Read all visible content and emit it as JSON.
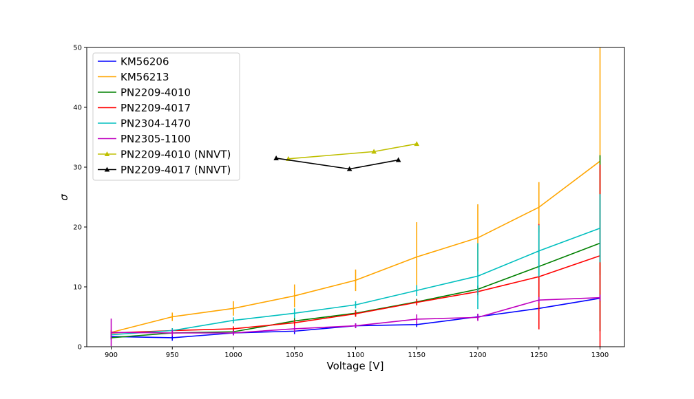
{
  "chart_data": {
    "type": "line",
    "title": "",
    "xlabel": "Voltage [V]",
    "ylabel": "σ",
    "xlim": [
      880,
      1320
    ],
    "ylim": [
      0,
      50
    ],
    "x_ticks": [
      900,
      950,
      1000,
      1050,
      1100,
      1150,
      1200,
      1250,
      1300
    ],
    "y_ticks": [
      0,
      10,
      20,
      30,
      40,
      50
    ],
    "grid": false,
    "legend_position": "top-left",
    "series": [
      {
        "name": "KM56206",
        "color": "#0000ff",
        "marker": "none",
        "x": [
          900,
          950,
          1000,
          1050,
          1100,
          1150,
          1200,
          1250,
          1300
        ],
        "y": [
          1.7,
          1.5,
          2.3,
          2.6,
          3.5,
          3.7,
          5.0,
          6.4,
          8.1
        ],
        "err": [
          0.3,
          0.5,
          0.4,
          0.5,
          0.4,
          0.4,
          0.5,
          0.4,
          0.5
        ]
      },
      {
        "name": "KM56213",
        "color": "#ffa500",
        "marker": "none",
        "x": [
          900,
          950,
          1000,
          1050,
          1100,
          1150,
          1200,
          1250,
          1300
        ],
        "y": [
          2.4,
          5.0,
          6.4,
          8.5,
          11.1,
          15.0,
          18.2,
          23.3,
          31.0
        ],
        "err": [
          0.4,
          0.7,
          1.2,
          1.9,
          1.8,
          5.8,
          5.6,
          4.2,
          19.0
        ]
      },
      {
        "name": "PN2209-4010",
        "color": "#008000",
        "marker": "none",
        "x": [
          900,
          950,
          1000,
          1050,
          1100,
          1150,
          1200,
          1250,
          1300
        ],
        "y": [
          1.5,
          2.3,
          2.5,
          4.3,
          5.6,
          7.5,
          9.6,
          13.4,
          17.3
        ],
        "err": [
          0.3,
          0.4,
          0.3,
          0.5,
          0.5,
          0.5,
          0.6,
          6.8,
          14.7
        ]
      },
      {
        "name": "PN2209-4017",
        "color": "#ff0000",
        "marker": "none",
        "x": [
          900,
          950,
          1000,
          1050,
          1100,
          1150,
          1200,
          1250,
          1300
        ],
        "y": [
          2.3,
          2.7,
          3.0,
          4.0,
          5.5,
          7.4,
          9.2,
          11.7,
          15.2
        ],
        "err": [
          0.4,
          0.4,
          0.4,
          0.5,
          0.5,
          0.5,
          0.6,
          8.8,
          15.2
        ]
      },
      {
        "name": "PN2304-1470",
        "color": "#00bfbf",
        "marker": "none",
        "x": [
          900,
          950,
          1000,
          1050,
          1100,
          1150,
          1200,
          1250,
          1300
        ],
        "y": [
          2.0,
          2.7,
          4.4,
          5.6,
          7.0,
          9.4,
          11.8,
          16.0,
          19.8
        ],
        "err": [
          0.4,
          0.4,
          0.5,
          0.8,
          0.6,
          0.9,
          5.5,
          4.3,
          5.7
        ]
      },
      {
        "name": "PN2305-1100",
        "color": "#bf00bf",
        "marker": "none",
        "x": [
          900,
          950,
          1000,
          1050,
          1100,
          1150,
          1200,
          1250,
          1300
        ],
        "y": [
          2.4,
          2.3,
          2.3,
          3.0,
          3.5,
          4.6,
          4.9,
          7.8,
          8.2
        ],
        "err": [
          2.3,
          0.5,
          0.4,
          0.5,
          0.4,
          0.8,
          0.6,
          0.5,
          0.5
        ]
      },
      {
        "name": "PN2209-4010 (NNVT)",
        "color": "#bfbf00",
        "marker": "triangle",
        "x": [
          1045,
          1115,
          1150
        ],
        "y": [
          31.4,
          32.6,
          33.9
        ],
        "err": []
      },
      {
        "name": "PN2209-4017 (NNVT)",
        "color": "#000000",
        "marker": "triangle",
        "x": [
          1035,
          1095,
          1135
        ],
        "y": [
          31.5,
          29.7,
          31.2
        ],
        "err": []
      }
    ]
  }
}
